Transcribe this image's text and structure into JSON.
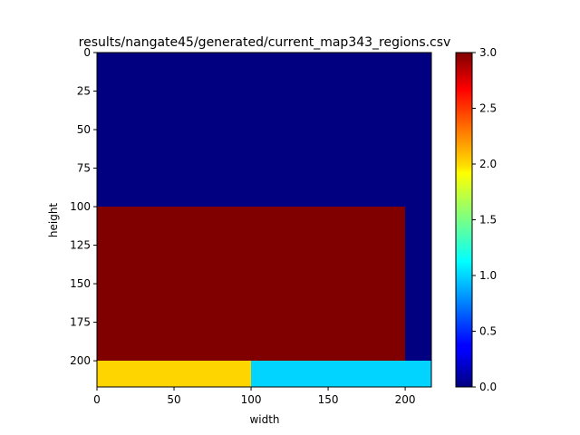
{
  "chart_data": {
    "type": "heatmap",
    "title": "results/nangate45/generated/current_map343_regions.csv",
    "xlabel": "width",
    "ylabel": "height",
    "xlim": [
      0,
      217
    ],
    "ylim": [
      217,
      0
    ],
    "x_ticks": [
      0,
      50,
      100,
      150,
      200
    ],
    "y_ticks": [
      0,
      25,
      50,
      75,
      100,
      125,
      150,
      175,
      200
    ],
    "colormap": "jet",
    "color_range": [
      0.0,
      3.0
    ],
    "colorbar_ticks": [
      "0.0",
      "0.5",
      "1.0",
      "1.5",
      "2.0",
      "2.5",
      "3.0"
    ],
    "regions": [
      {
        "x0": 0,
        "x1": 217,
        "y0": 0,
        "y1": 100,
        "value": 0
      },
      {
        "x0": 200,
        "x1": 217,
        "y0": 100,
        "y1": 200,
        "value": 0
      },
      {
        "x0": 0,
        "x1": 200,
        "y0": 100,
        "y1": 200,
        "value": 3
      },
      {
        "x0": 0,
        "x1": 100,
        "y0": 200,
        "y1": 217,
        "value": 2
      },
      {
        "x0": 100,
        "x1": 217,
        "y0": 200,
        "y1": 217,
        "value": 1
      }
    ]
  }
}
